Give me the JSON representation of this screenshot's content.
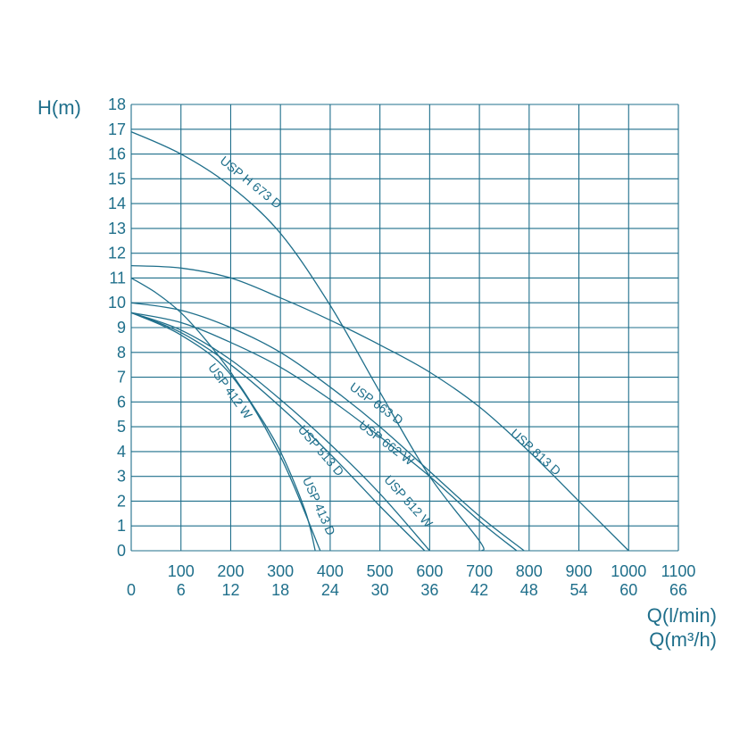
{
  "chart_data": {
    "type": "line",
    "ylabel": "H(m)",
    "xlabel": "Q(l/min)",
    "xlabel2": "Q(m³/h)",
    "xlim": [
      0,
      1100
    ],
    "ylim": [
      0,
      18
    ],
    "grid": true,
    "color": "#1f6f8b",
    "x_ticks_lmin": [
      "0",
      "100",
      "200",
      "300",
      "400",
      "500",
      "600",
      "700",
      "800",
      "900",
      "1000",
      "1100"
    ],
    "x_ticks_m3h": [
      "6",
      "12",
      "18",
      "24",
      "30",
      "36",
      "42",
      "48",
      "54",
      "60",
      "66"
    ],
    "y_ticks": [
      "0",
      "1",
      "2",
      "3",
      "4",
      "5",
      "6",
      "7",
      "8",
      "9",
      "10",
      "11",
      "12",
      "13",
      "14",
      "15",
      "16",
      "17",
      "18"
    ],
    "series": [
      {
        "name": "USP H 673 D",
        "x": [
          0,
          100,
          200,
          300,
          400,
          500,
          600,
          700,
          705
        ],
        "y": [
          16.9,
          16.0,
          14.7,
          12.8,
          9.9,
          6.4,
          3.0,
          0.4,
          0
        ]
      },
      {
        "name": "USP 813 D",
        "x": [
          0,
          100,
          200,
          300,
          400,
          500,
          600,
          700,
          800,
          900,
          1000
        ],
        "y": [
          11.5,
          11.4,
          11.0,
          10.2,
          9.3,
          8.3,
          7.2,
          5.8,
          4.0,
          2.0,
          0
        ]
      },
      {
        "name": "USP 663 D",
        "x": [
          0,
          100,
          200,
          300,
          400,
          500,
          600,
          700,
          790
        ],
        "y": [
          10.0,
          9.7,
          9.0,
          8.0,
          6.6,
          5.0,
          3.2,
          1.4,
          0
        ]
      },
      {
        "name": "USP 662 W",
        "x": [
          0,
          100,
          200,
          300,
          400,
          500,
          600,
          700,
          775
        ],
        "y": [
          9.6,
          9.2,
          8.4,
          7.4,
          6.1,
          4.6,
          3.0,
          1.2,
          0
        ]
      },
      {
        "name": "USP 512 W",
        "x": [
          0,
          100,
          200,
          300,
          400,
          500,
          600
        ],
        "y": [
          9.6,
          8.9,
          7.7,
          6.1,
          4.3,
          2.3,
          0
        ]
      },
      {
        "name": "USP 513 D",
        "x": [
          0,
          100,
          200,
          300,
          400,
          500,
          590
        ],
        "y": [
          9.6,
          8.8,
          7.5,
          5.8,
          3.9,
          1.8,
          0
        ]
      },
      {
        "name": "USP 412 W",
        "x": [
          0,
          100,
          200,
          300,
          380
        ],
        "y": [
          9.6,
          8.7,
          7.1,
          3.8,
          0
        ]
      },
      {
        "name": "USP 413 D",
        "x": [
          0,
          50,
          100,
          150,
          200,
          250,
          300,
          350,
          370
        ],
        "y": [
          11.0,
          10.4,
          9.6,
          8.5,
          7.2,
          5.7,
          4.0,
          1.6,
          0
        ]
      }
    ],
    "labels": [
      {
        "text": "USP H 673 D",
        "series": "USP H 673 D"
      },
      {
        "text": "USP 813 D",
        "series": "USP 813 D"
      },
      {
        "text": "USP 663 D",
        "series": "USP 663 D"
      },
      {
        "text": "USP 662 W",
        "series": "USP 662 W"
      },
      {
        "text": "USP 512 W",
        "series": "USP 512 W"
      },
      {
        "text": "USP 513 D",
        "series": "USP 513 D"
      },
      {
        "text": "USP 412 W",
        "series": "USP 412 W"
      },
      {
        "text": "USP 413 D",
        "series": "USP 413 D"
      }
    ]
  }
}
